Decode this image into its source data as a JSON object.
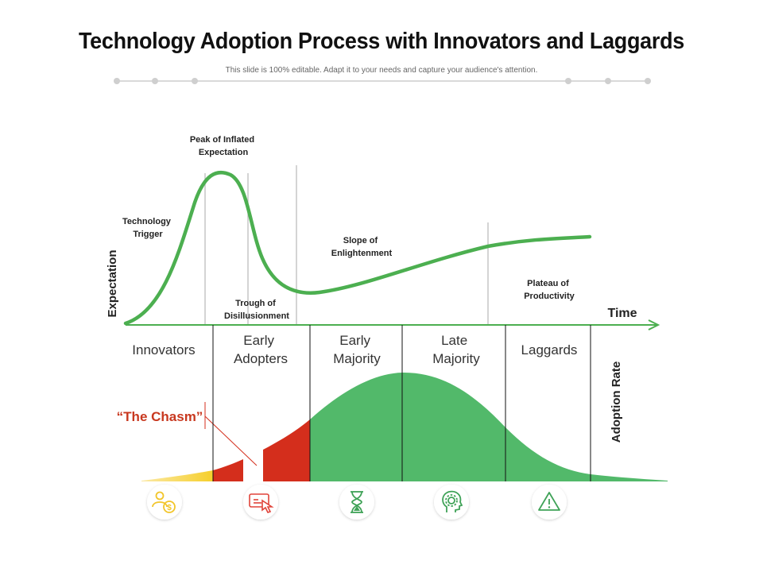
{
  "header": {
    "title": "Technology Adoption Process with Innovators and Laggards",
    "subtitle": "This slide is 100% editable. Adapt it to your needs and capture your audience's attention."
  },
  "hype_cycle": {
    "y_axis_label": "Expectation",
    "x_axis_label": "Time",
    "phases": {
      "technology_trigger": [
        "Technology",
        "Trigger"
      ],
      "peak": [
        "Peak of Inflated",
        "Expectation"
      ],
      "trough": [
        "Trough of",
        "Disillusionment"
      ],
      "slope": [
        "Slope of",
        "Enlightenment"
      ],
      "plateau": [
        "Plateau  of",
        "Productivity"
      ]
    }
  },
  "adoption": {
    "axis_label": "Adoption Rate",
    "chasm_label": "“The Chasm”",
    "groups": {
      "innovators": [
        "Innovators"
      ],
      "early_adopters": [
        "Early",
        "Adopters"
      ],
      "early_majority": [
        "Early",
        "Majority"
      ],
      "late_majority": [
        "Late",
        "Majority"
      ],
      "laggards": [
        "Laggards"
      ]
    }
  },
  "icons": [
    "person-dollar-icon",
    "hand-pointer-screen-icon",
    "hourglass-icon",
    "head-gear-icon",
    "warning-triangle-icon"
  ],
  "colors": {
    "curve": "#4caf50",
    "green_fill": "#52b96a",
    "red_fill": "#d42e1c",
    "yellow_fill": "#f6cf2c",
    "chasm_text": "#c8381f",
    "icon_yellow": "#f2c52a",
    "icon_red": "#e0443a",
    "icon_green": "#3fa257"
  }
}
